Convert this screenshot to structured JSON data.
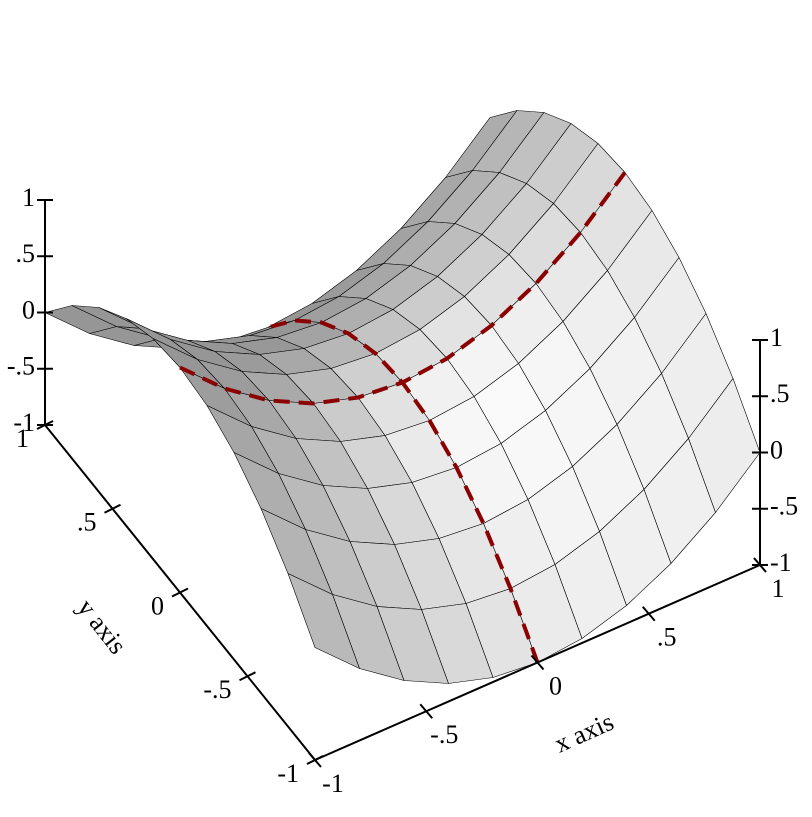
{
  "chart_data": {
    "type": "surface3d",
    "x_label": "x axis",
    "y_label": "y axis",
    "xlim": [
      -1,
      1
    ],
    "ylim": [
      -1,
      1
    ],
    "zlim": [
      -1,
      1
    ],
    "xticks": [
      -1,
      {
        "value": -0.5,
        "label": "-.5"
      },
      0,
      {
        "value": 0.5,
        "label": ".5"
      },
      1
    ],
    "yticks": [
      -1,
      {
        "value": -0.5,
        "label": "-.5"
      },
      0,
      {
        "value": 0.5,
        "label": ".5"
      },
      1
    ],
    "zticks": [
      -1,
      {
        "value": -0.5,
        "label": "-.5"
      },
      0,
      {
        "value": 0.5,
        "label": ".5"
      },
      1
    ],
    "surface_color": "#e8e8e8",
    "x": [
      -1,
      -0.8,
      -0.6,
      -0.4,
      -0.2,
      0,
      0.2,
      0.4,
      0.6,
      0.8,
      1
    ],
    "y": [
      -1,
      -0.8,
      -0.6,
      -0.4,
      -0.2,
      0,
      0.2,
      0.4,
      0.6,
      0.8,
      1
    ],
    "z": [
      [
        0,
        -0.36,
        -0.64,
        -0.84,
        -0.96,
        -1,
        -0.96,
        -0.84,
        -0.64,
        -0.36,
        0
      ],
      [
        0.36,
        0,
        -0.28,
        -0.48,
        -0.6,
        -0.64,
        -0.6,
        -0.48,
        -0.28,
        0,
        0.36
      ],
      [
        0.64,
        0.28,
        0,
        -0.2,
        -0.32,
        -0.36,
        -0.32,
        -0.2,
        0,
        0.28,
        0.64
      ],
      [
        0.84,
        0.48,
        0.2,
        0,
        -0.12,
        -0.16,
        -0.12,
        0,
        0.2,
        0.48,
        0.84
      ],
      [
        0.96,
        0.6,
        0.32,
        0.12,
        0,
        -0.04,
        0,
        0.12,
        0.32,
        0.6,
        0.96
      ],
      [
        1,
        0.64,
        0.36,
        0.16,
        0.04,
        0,
        0.04,
        0.16,
        0.36,
        0.64,
        1
      ],
      [
        0.96,
        0.6,
        0.32,
        0.12,
        0,
        -0.04,
        0,
        0.12,
        0.32,
        0.6,
        0.96
      ],
      [
        0.84,
        0.48,
        0.2,
        0,
        -0.12,
        -0.16,
        -0.12,
        0,
        0.2,
        0.48,
        0.84
      ],
      [
        0.64,
        0.28,
        0,
        -0.2,
        -0.32,
        -0.36,
        -0.32,
        -0.2,
        0,
        0.28,
        0.64
      ],
      [
        0.36,
        0,
        -0.28,
        -0.48,
        -0.6,
        -0.64,
        -0.6,
        -0.48,
        -0.28,
        0,
        0.36
      ],
      [
        0,
        -0.36,
        -0.64,
        -0.84,
        -0.96,
        -1,
        -0.96,
        -0.84,
        -0.64,
        -0.36,
        0
      ]
    ],
    "lines": [
      {
        "color": "#8b0000",
        "x": [
          0,
          0,
          0,
          0,
          0,
          0,
          0,
          0,
          0,
          0,
          0
        ],
        "y": [
          -1,
          -0.8,
          -0.6,
          -0.4,
          -0.2,
          0,
          0.2,
          0.4,
          0.6,
          0.8,
          1
        ],
        "z": [
          -1,
          -0.64,
          -0.36,
          -0.16,
          -0.04,
          0,
          -0.04,
          -0.16,
          -0.36,
          -0.64,
          -1
        ]
      },
      {
        "color": "#8b0000",
        "x": [
          -1,
          -0.8,
          -0.6,
          -0.4,
          -0.2,
          0,
          0.2,
          0.4,
          0.6,
          0.8,
          1
        ],
        "y": [
          0,
          0,
          0,
          0,
          0,
          0,
          0,
          0,
          0,
          0,
          0
        ],
        "z": [
          1,
          0.64,
          0.36,
          0.16,
          0.04,
          0,
          0.04,
          0.16,
          0.36,
          0.64,
          1
        ]
      }
    ]
  }
}
